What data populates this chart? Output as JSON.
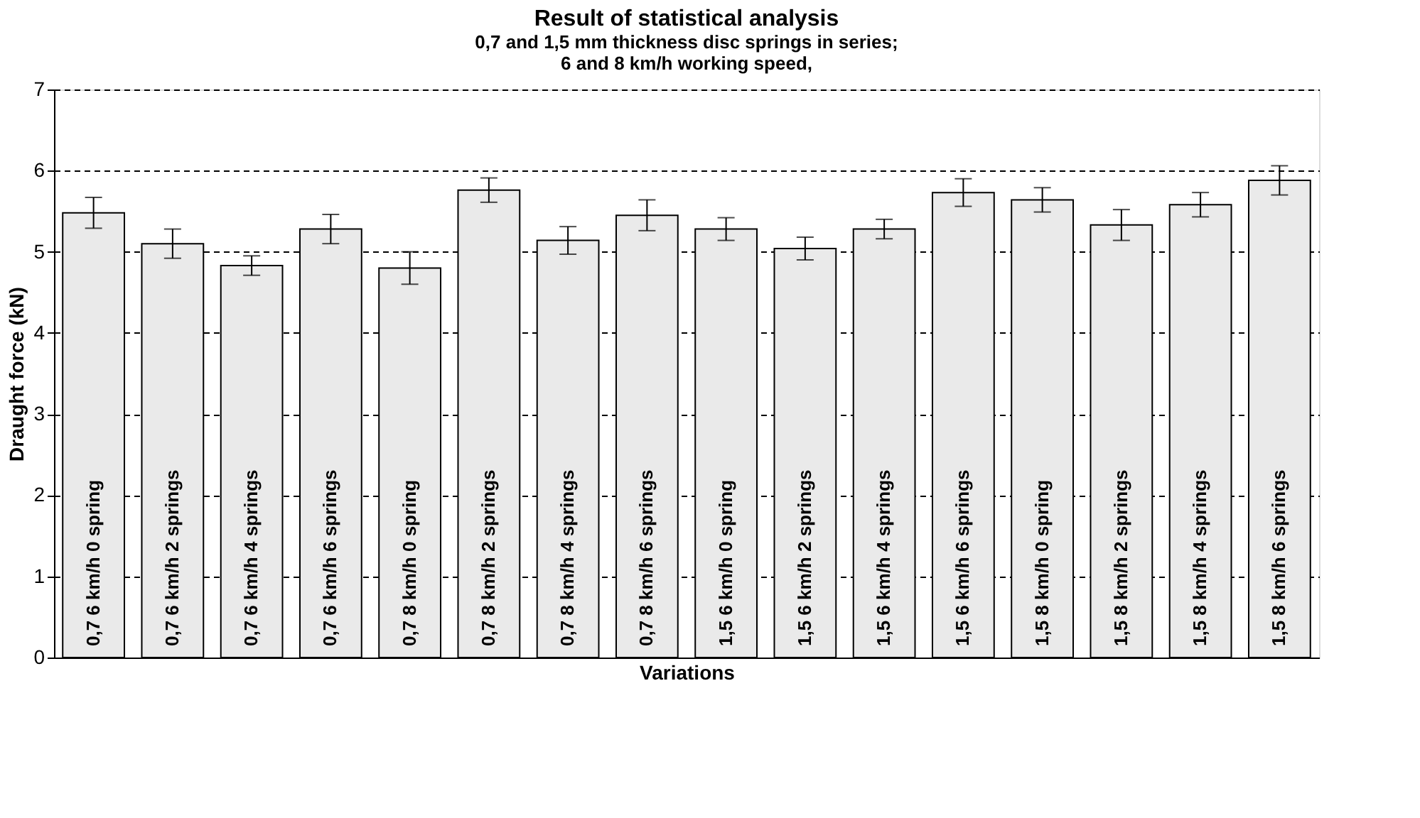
{
  "chart_data": {
    "type": "bar",
    "title": "Result of statistical analysis",
    "subtitle": [
      "0,7 and 1,5 mm thickness disc springs in series;",
      "6 and 8 km/h working speed,"
    ],
    "xlabel": "Variations",
    "ylabel": "Draught force (kN)",
    "categories": [
      "0,7  6 km/h  0 spring",
      "0,7  6 km/h  2 springs",
      "0,7  6 km/h  4 springs",
      "0,7  6 km/h  6 springs",
      "0,7  8 km/h  0 spring",
      "0,7  8 km/h  2 springs",
      "0,7  8 km/h  4 springs",
      "0,7  8 km/h  6 springs",
      "1,5  6 km/h  0 spring",
      "1,5  6 km/h  2 springs",
      "1,5  6 km/h  4 springs",
      "1,5  6 km/h  6 springs",
      "1,5  8 km/h  0 spring",
      "1,5  8 km/h  2 springs",
      "1,5  8 km/h  4 springs",
      "1,5  8 km/h  6 springs"
    ],
    "values": [
      5.48,
      5.1,
      4.83,
      5.28,
      4.8,
      5.76,
      5.14,
      5.45,
      5.28,
      5.04,
      5.28,
      5.73,
      5.64,
      5.33,
      5.58,
      5.88
    ],
    "errors": [
      0.19,
      0.18,
      0.12,
      0.18,
      0.2,
      0.15,
      0.17,
      0.19,
      0.14,
      0.14,
      0.12,
      0.17,
      0.15,
      0.19,
      0.15,
      0.18
    ],
    "color": "#eaeaea",
    "ylim": [
      0,
      7
    ],
    "yticks": [
      0,
      1,
      2,
      3,
      4,
      5,
      6,
      7
    ],
    "grid": "y",
    "line_style": "dashed",
    "tick_labels": "y"
  }
}
